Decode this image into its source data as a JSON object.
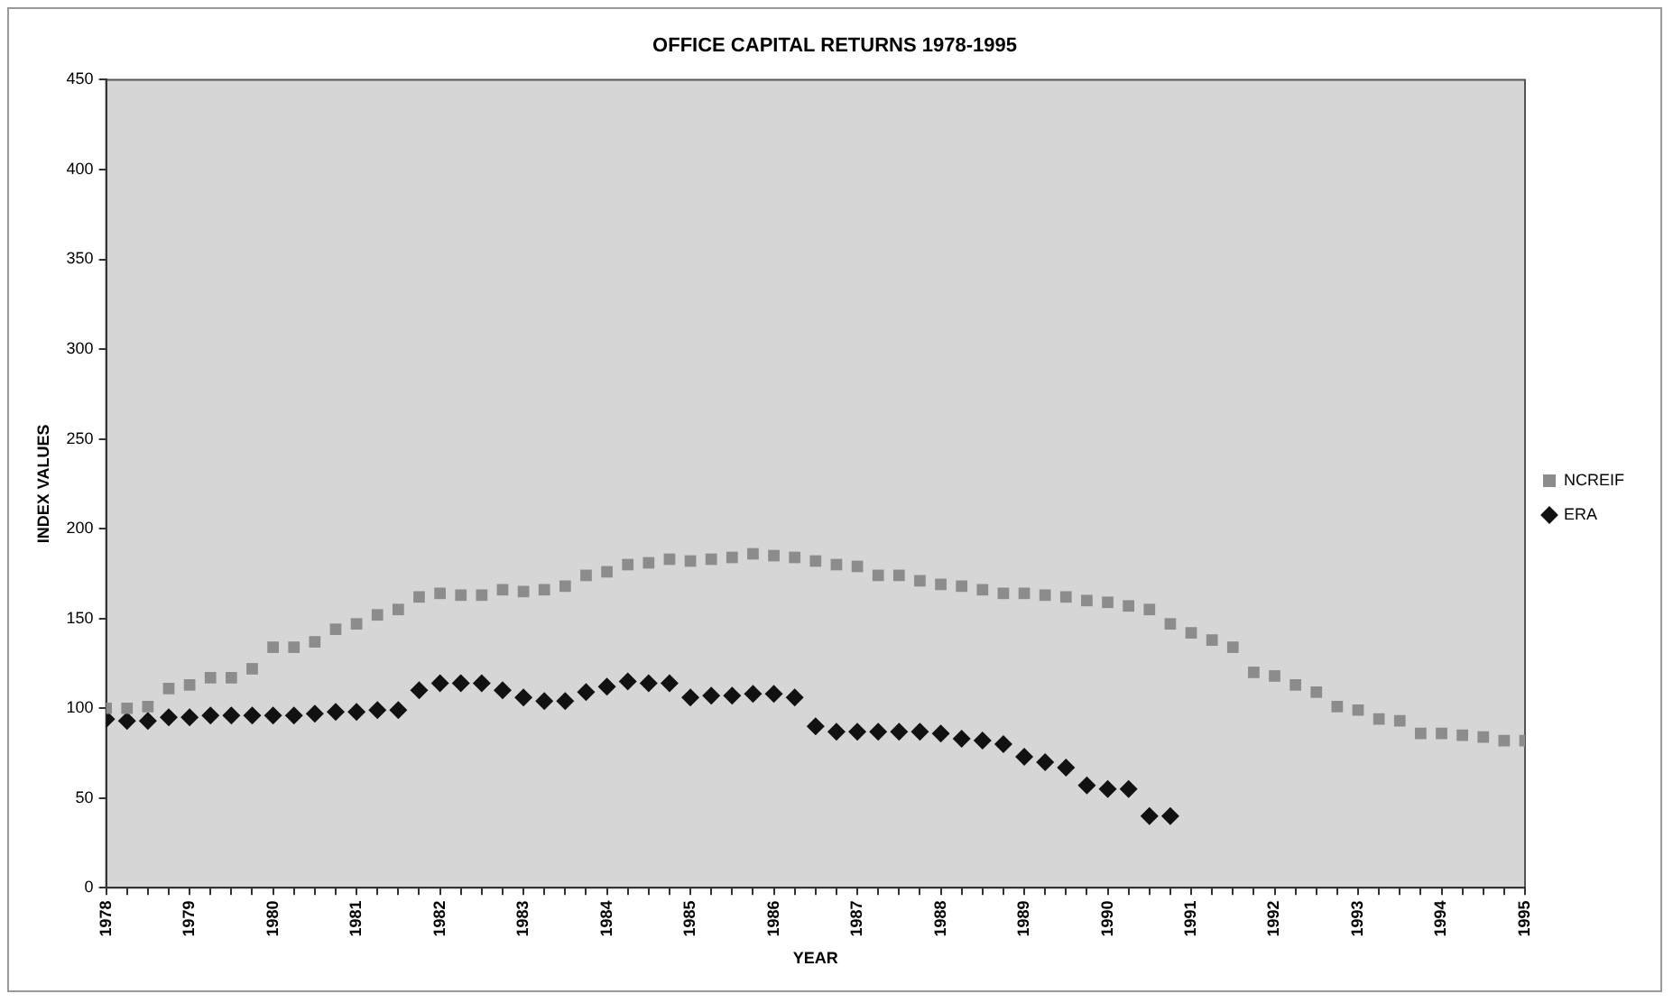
{
  "chart_data": {
    "type": "scatter",
    "title": "OFFICE CAPITAL RETURNS 1978-1995",
    "xlabel": "YEAR",
    "ylabel": "INDEX VALUES",
    "x": [
      1978,
      1978.25,
      1978.5,
      1978.75,
      1979,
      1979.25,
      1979.5,
      1979.75,
      1980,
      1980.25,
      1980.5,
      1980.75,
      1981,
      1981.25,
      1981.5,
      1981.75,
      1982,
      1982.25,
      1982.5,
      1982.75,
      1983,
      1983.25,
      1983.5,
      1983.75,
      1984,
      1984.25,
      1984.5,
      1984.75,
      1985,
      1985.25,
      1985.5,
      1985.75,
      1986,
      1986.25,
      1986.5,
      1986.75,
      1987,
      1987.25,
      1987.5,
      1987.75,
      1988,
      1988.25,
      1988.5,
      1988.75,
      1989,
      1989.25,
      1989.5,
      1989.75,
      1990,
      1990.25,
      1990.5,
      1990.75,
      1991,
      1991.25,
      1991.5,
      1991.75,
      1992,
      1992.25,
      1992.5,
      1992.75,
      1993,
      1993.25,
      1993.5,
      1993.75,
      1994,
      1994.25,
      1994.5,
      1994.75,
      1995
    ],
    "series": [
      {
        "name": "NCREIF",
        "color": "#8c8c8c",
        "marker": "square",
        "values": [
          100,
          100,
          101,
          111,
          113,
          117,
          117,
          122,
          134,
          134,
          137,
          144,
          147,
          152,
          155,
          162,
          164,
          163,
          163,
          166,
          165,
          166,
          168,
          174,
          176,
          180,
          181,
          183,
          182,
          183,
          184,
          186,
          185,
          184,
          182,
          180,
          179,
          174,
          174,
          171,
          169,
          168,
          166,
          164,
          164,
          163,
          162,
          160,
          159,
          157,
          155,
          147,
          142,
          138,
          134,
          120,
          118,
          113,
          109,
          101,
          99,
          94,
          93,
          86,
          86,
          85,
          84,
          82,
          82
        ]
      },
      {
        "name": "ERA",
        "color": "#111111",
        "marker": "diamond",
        "values": [
          94,
          93,
          93,
          95,
          95,
          96,
          96,
          96,
          96,
          96,
          97,
          98,
          98,
          99,
          99,
          110,
          114,
          114,
          114,
          110,
          106,
          104,
          104,
          109,
          112,
          115,
          114,
          114,
          106,
          107,
          107,
          108,
          108,
          106,
          90,
          87,
          87,
          87,
          87,
          87,
          86,
          83,
          82,
          80,
          73,
          70,
          67,
          57,
          55,
          55,
          40,
          40,
          null,
          null,
          null,
          null,
          null,
          null,
          null,
          null,
          null,
          null,
          null,
          null,
          null,
          null,
          null,
          null,
          null
        ]
      }
    ],
    "xlim": [
      1978,
      1995
    ],
    "xticks": [
      1978,
      {
        "value": 1978.25,
        "label": null
      },
      {
        "value": 1978.5,
        "label": null
      },
      {
        "value": 1978.75,
        "label": null
      },
      1979,
      {
        "value": 1979.25,
        "label": null
      },
      {
        "value": 1979.5,
        "label": null
      },
      {
        "value": 1979.75,
        "label": null
      },
      1980,
      {
        "value": 1980.25,
        "label": null
      },
      {
        "value": 1980.5,
        "label": null
      },
      {
        "value": 1980.75,
        "label": null
      },
      1981,
      {
        "value": 1981.25,
        "label": null
      },
      {
        "value": 1981.5,
        "label": null
      },
      {
        "value": 1981.75,
        "label": null
      },
      1982,
      {
        "value": 1982.25,
        "label": null
      },
      {
        "value": 1982.5,
        "label": null
      },
      {
        "value": 1982.75,
        "label": null
      },
      1983,
      {
        "value": 1983.25,
        "label": null
      },
      {
        "value": 1983.5,
        "label": null
      },
      {
        "value": 1983.75,
        "label": null
      },
      1984,
      {
        "value": 1984.25,
        "label": null
      },
      {
        "value": 1984.5,
        "label": null
      },
      {
        "value": 1984.75,
        "label": null
      },
      1985,
      {
        "value": 1985.25,
        "label": null
      },
      {
        "value": 1985.5,
        "label": null
      },
      {
        "value": 1985.75,
        "label": null
      },
      1986,
      {
        "value": 1986.25,
        "label": null
      },
      {
        "value": 1986.5,
        "label": null
      },
      {
        "value": 1986.75,
        "label": null
      },
      1987,
      {
        "value": 1987.25,
        "label": null
      },
      {
        "value": 1987.5,
        "label": null
      },
      {
        "value": 1987.75,
        "label": null
      },
      1988,
      {
        "value": 1988.25,
        "label": null
      },
      {
        "value": 1988.5,
        "label": null
      },
      {
        "value": 1988.75,
        "label": null
      },
      1989,
      {
        "value": 1989.25,
        "label": null
      },
      {
        "value": 1989.5,
        "label": null
      },
      {
        "value": 1989.75,
        "label": null
      },
      1990,
      {
        "value": 1990.25,
        "label": null
      },
      {
        "value": 1990.5,
        "label": null
      },
      {
        "value": 1990.75,
        "label": null
      },
      1991,
      {
        "value": 1991.25,
        "label": null
      },
      {
        "value": 1991.5,
        "label": null
      },
      {
        "value": 1991.75,
        "label": null
      },
      1992,
      {
        "value": 1992.25,
        "label": null
      },
      {
        "value": 1992.5,
        "label": null
      },
      {
        "value": 1992.75,
        "label": null
      },
      1993,
      {
        "value": 1993.25,
        "label": null
      },
      {
        "value": 1993.5,
        "label": null
      },
      {
        "value": 1993.75,
        "label": null
      },
      1994,
      {
        "value": 1994.25,
        "label": null
      },
      {
        "value": 1994.5,
        "label": null
      },
      {
        "value": 1994.75,
        "label": null
      },
      1995
    ],
    "ylim": [
      0,
      450
    ],
    "yticks": [
      0,
      50,
      100,
      150,
      200,
      250,
      300,
      350,
      400,
      450
    ],
    "grid": false,
    "legend": "right"
  }
}
